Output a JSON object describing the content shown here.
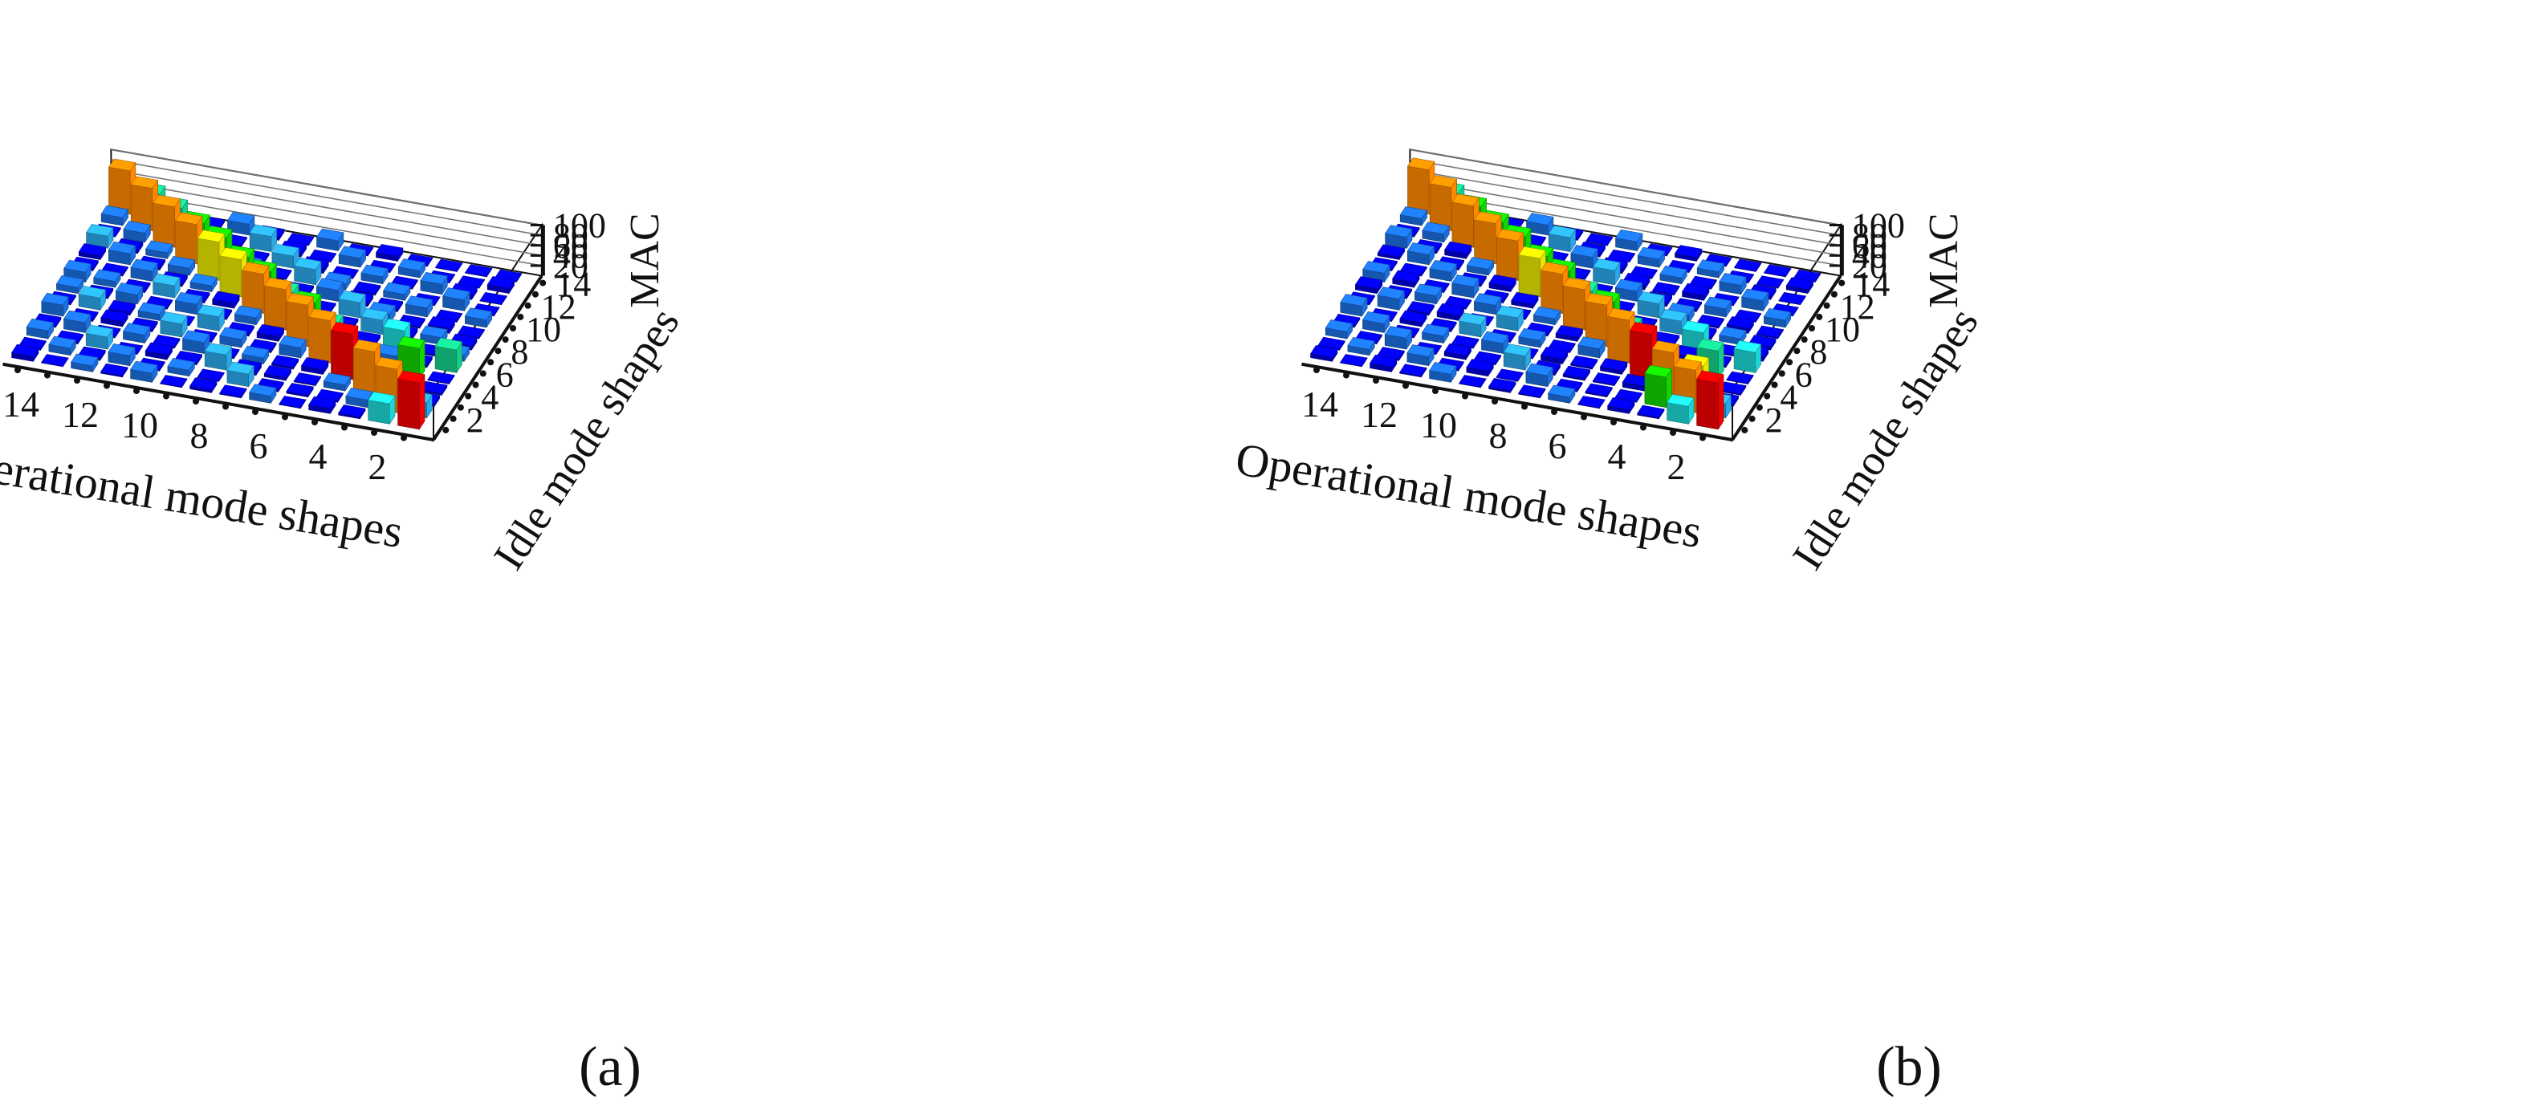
{
  "colors": {
    "scale": [
      "#0000d8",
      "#1b6fe0",
      "#2aa8e8",
      "#1ed6d6",
      "#14cf8a",
      "#12d400",
      "#e6e600",
      "#ff8800",
      "#ee0000"
    ],
    "axis": "#111111",
    "grid": "#777777"
  },
  "chart_data": [
    {
      "type": "bar3d",
      "caption": "(a)",
      "zlabel": "MAC",
      "xlabel": "Operational mode shapes",
      "ylabel": "Idle mode shapes",
      "x_ticks": [
        "2",
        "4",
        "6",
        "8",
        "10",
        "12",
        "14"
      ],
      "y_ticks": [
        "2",
        "4",
        "6",
        "8",
        "10",
        "12",
        "14"
      ],
      "z_ticks": [
        "20",
        "40",
        "60",
        "80",
        "100"
      ],
      "zlim": [
        0,
        100
      ],
      "x_categories": [
        1,
        2,
        3,
        4,
        5,
        6,
        7,
        8,
        9,
        10,
        11,
        12,
        13,
        14
      ],
      "y_categories": [
        1,
        2,
        3,
        4,
        5,
        6,
        7,
        8,
        9,
        10,
        11,
        12,
        13,
        14
      ],
      "mac": [
        [
          92,
          30,
          6,
          4,
          1,
          45,
          12,
          8,
          2,
          15,
          1,
          1,
          10,
          1
        ],
        [
          40,
          86,
          18,
          6,
          60,
          5,
          3,
          14,
          10,
          1,
          22,
          8,
          1,
          1
        ],
        [
          4,
          15,
          88,
          20,
          2,
          12,
          40,
          6,
          3,
          18,
          1,
          20,
          1,
          1
        ],
        [
          10,
          2,
          12,
          90,
          22,
          6,
          5,
          28,
          18,
          4,
          12,
          2,
          14,
          1
        ],
        [
          1,
          4,
          2,
          10,
          84,
          55,
          6,
          4,
          30,
          8,
          3,
          14,
          1,
          10
        ],
        [
          14,
          3,
          6,
          4,
          20,
          82,
          64,
          5,
          2,
          22,
          12,
          1,
          18,
          1
        ],
        [
          2,
          25,
          8,
          12,
          3,
          10,
          80,
          52,
          8,
          4,
          30,
          10,
          1,
          20
        ],
        [
          6,
          1,
          30,
          2,
          16,
          4,
          14,
          78,
          60,
          6,
          2,
          24,
          8,
          1
        ],
        [
          1,
          12,
          4,
          22,
          2,
          28,
          3,
          10,
          74,
          56,
          14,
          3,
          30,
          6
        ],
        [
          18,
          2,
          10,
          3,
          26,
          1,
          20,
          4,
          12,
          76,
          62,
          8,
          2,
          22
        ],
        [
          3,
          20,
          1,
          16,
          4,
          12,
          2,
          24,
          6,
          14,
          78,
          58,
          10,
          4
        ],
        [
          12,
          4,
          24,
          2,
          10,
          6,
          18,
          3,
          20,
          4,
          12,
          80,
          55,
          8
        ],
        [
          1,
          14,
          3,
          20,
          2,
          24,
          4,
          12,
          2,
          22,
          6,
          18,
          84,
          50
        ],
        [
          10,
          2,
          16,
          4,
          22,
          3,
          12,
          20,
          4,
          8,
          24,
          2,
          16,
          86
        ]
      ]
    },
    {
      "type": "bar3d",
      "caption": "(b)",
      "zlabel": "MAC",
      "xlabel": "Operational mode shapes",
      "ylabel": "Idle mode shapes",
      "x_ticks": [
        "2",
        "4",
        "6",
        "8",
        "10",
        "12",
        "14"
      ],
      "y_ticks": [
        "2",
        "4",
        "6",
        "8",
        "10",
        "12",
        "14"
      ],
      "z_ticks": [
        "20",
        "40",
        "60",
        "80",
        "100"
      ],
      "zlim": [
        0,
        100
      ],
      "x_categories": [
        1,
        2,
        3,
        4,
        5,
        6,
        7,
        8,
        9,
        10,
        11,
        12,
        13,
        14
      ],
      "y_categories": [
        1,
        2,
        3,
        4,
        5,
        6,
        7,
        8,
        9,
        10,
        11,
        12,
        13,
        14
      ],
      "mac": [
        [
          92,
          28,
          5,
          3,
          1,
          40,
          10,
          6,
          2,
          14,
          1,
          1,
          8,
          1
        ],
        [
          35,
          84,
          70,
          6,
          55,
          4,
          2,
          12,
          10,
          1,
          20,
          6,
          1,
          1
        ],
        [
          3,
          60,
          86,
          18,
          2,
          10,
          36,
          5,
          3,
          16,
          1,
          18,
          1,
          1
        ],
        [
          8,
          2,
          10,
          90,
          20,
          5,
          4,
          26,
          16,
          3,
          10,
          2,
          12,
          1
        ],
        [
          1,
          3,
          2,
          8,
          85,
          50,
          5,
          3,
          28,
          6,
          2,
          12,
          1,
          8
        ],
        [
          12,
          2,
          5,
          3,
          18,
          82,
          66,
          4,
          2,
          20,
          10,
          1,
          16,
          1
        ],
        [
          2,
          22,
          6,
          10,
          2,
          8,
          80,
          55,
          6,
          3,
          28,
          8,
          1,
          18
        ],
        [
          5,
          1,
          28,
          2,
          14,
          3,
          12,
          78,
          62,
          5,
          2,
          22,
          6,
          1
        ],
        [
          1,
          10,
          3,
          20,
          2,
          26,
          2,
          8,
          76,
          58,
          12,
          2,
          28,
          4
        ],
        [
          16,
          2,
          8,
          2,
          24,
          1,
          18,
          3,
          10,
          78,
          64,
          6,
          2,
          20
        ],
        [
          2,
          18,
          1,
          14,
          3,
          10,
          2,
          22,
          4,
          12,
          80,
          60,
          8,
          3
        ],
        [
          10,
          3,
          22,
          2,
          8,
          4,
          16,
          2,
          18,
          3,
          10,
          82,
          58,
          6
        ],
        [
          1,
          12,
          2,
          18,
          2,
          22,
          3,
          10,
          2,
          20,
          4,
          16,
          86,
          52
        ],
        [
          8,
          2,
          14,
          3,
          20,
          2,
          10,
          18,
          3,
          6,
          22,
          2,
          14,
          88
        ]
      ]
    }
  ]
}
